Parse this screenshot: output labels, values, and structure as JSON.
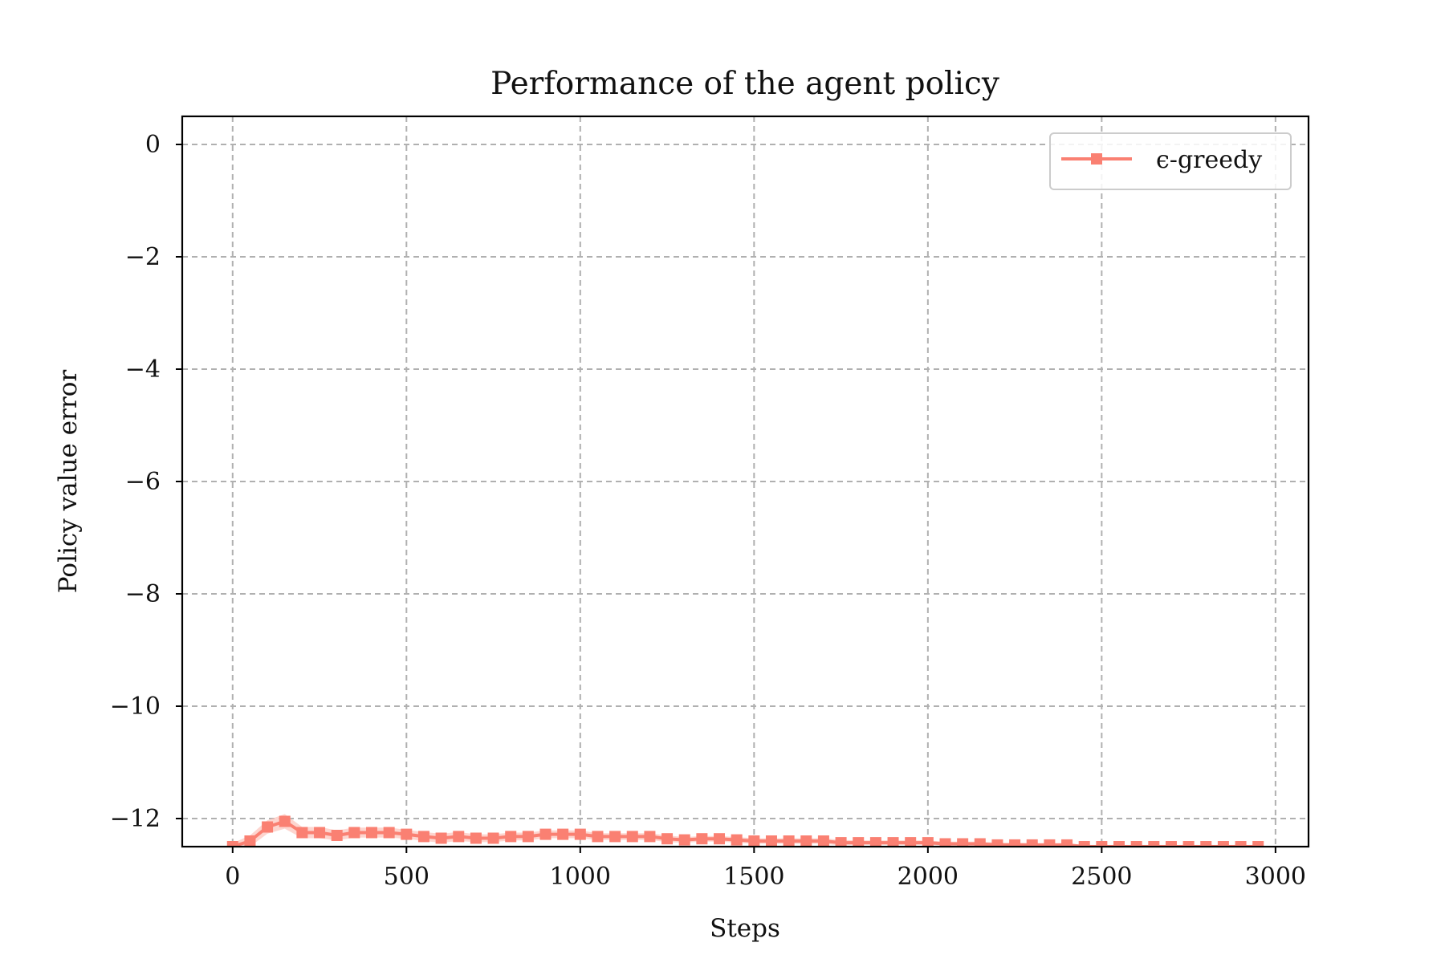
{
  "chart_data": {
    "type": "line",
    "title": "Performance of the agent policy",
    "xlabel": "Steps",
    "ylabel": "Policy value error",
    "xlim": [
      -145,
      3095
    ],
    "ylim": [
      -12.5,
      0.5
    ],
    "xticks": [
      0,
      500,
      1000,
      1500,
      2000,
      2500,
      3000
    ],
    "xtick_labels": [
      "0",
      "500",
      "1000",
      "1500",
      "2000",
      "2500",
      "3000"
    ],
    "yticks": [
      0,
      -2,
      -4,
      -6,
      -8,
      -10,
      -12
    ],
    "ytick_labels": [
      "0",
      "−2",
      "−4",
      "−6",
      "−8",
      "−10",
      "−12"
    ],
    "grid": true,
    "legend": {
      "position": "top-right",
      "label": "ϵ-greedy"
    },
    "series": [
      {
        "name": "ϵ-greedy",
        "color": "#fa8072",
        "band_color": "#fcc3bb",
        "marker": "square",
        "x": [
          0,
          50,
          100,
          150,
          200,
          250,
          300,
          350,
          400,
          450,
          500,
          550,
          600,
          650,
          700,
          750,
          800,
          850,
          900,
          950,
          1000,
          1050,
          1100,
          1150,
          1200,
          1250,
          1300,
          1350,
          1400,
          1450,
          1500,
          1550,
          1600,
          1650,
          1700,
          1750,
          1800,
          1850,
          1900,
          1950,
          2000,
          2050,
          2100,
          2150,
          2200,
          2250,
          2300,
          2350,
          2400,
          2450,
          2500,
          2550,
          2600,
          2650,
          2700,
          2750,
          2800,
          2850,
          2900,
          2950
        ],
        "values": [
          -12.5,
          -12.4,
          -12.15,
          -12.05,
          -12.25,
          -12.25,
          -12.3,
          -12.25,
          -12.25,
          -12.25,
          -12.28,
          -12.32,
          -12.35,
          -12.32,
          -12.35,
          -12.35,
          -12.32,
          -12.32,
          -12.28,
          -12.28,
          -12.28,
          -12.32,
          -12.32,
          -12.32,
          -12.32,
          -12.36,
          -12.38,
          -12.36,
          -12.36,
          -12.38,
          -12.4,
          -12.4,
          -12.4,
          -12.4,
          -12.4,
          -12.43,
          -12.43,
          -12.43,
          -12.43,
          -12.43,
          -12.43,
          -12.45,
          -12.45,
          -12.45,
          -12.47,
          -12.47,
          -12.47,
          -12.47,
          -12.47,
          -12.5,
          -12.5,
          -12.5,
          -12.5,
          -12.5,
          -12.5,
          -12.5,
          -12.5,
          -12.5,
          -12.5,
          -12.5
        ],
        "band": [
          0.06,
          0.1,
          0.12,
          0.13,
          0.1,
          0.1,
          0.09,
          0.09,
          0.09,
          0.09,
          0.08,
          0.08,
          0.08,
          0.08,
          0.07,
          0.07,
          0.07,
          0.07,
          0.07,
          0.07,
          0.07,
          0.06,
          0.06,
          0.06,
          0.06,
          0.06,
          0.05,
          0.05,
          0.05,
          0.05,
          0.05,
          0.05,
          0.05,
          0.05,
          0.05,
          0.05,
          0.04,
          0.04,
          0.04,
          0.04,
          0.04,
          0.04,
          0.04,
          0.04,
          0.04,
          0.04,
          0.03,
          0.03,
          0.03,
          0.03,
          0.03,
          0.03,
          0.03,
          0.03,
          0.03,
          0.03,
          0.03,
          0.03,
          0.03,
          0.03
        ]
      }
    ]
  }
}
